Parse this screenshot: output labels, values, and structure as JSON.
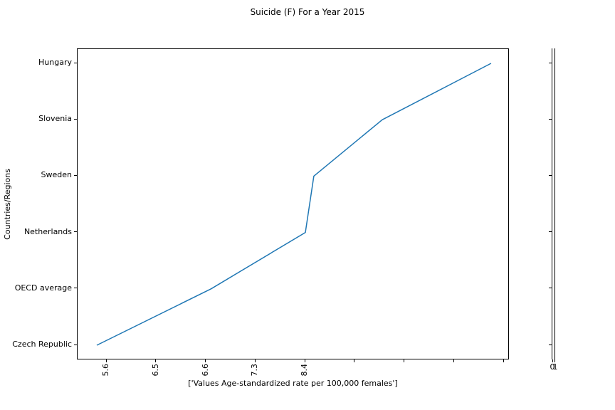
{
  "figure": {
    "background": "#ffffff",
    "text_color": "#000000"
  },
  "chart_data": {
    "type": "line",
    "title": "Suicide (F) For a Year 2015",
    "xlabel": "['Values Age-standardized rate per 100,000 females']",
    "ylabel": "Countries/Regions",
    "grid": false,
    "legend": false,
    "y_categories_bottom_to_top": [
      "Czech Republic",
      "OECD average",
      "Netherlands",
      "Sweden",
      "Slovenia",
      "Hungary"
    ],
    "x_tick_labels": [
      "5.6",
      "6.5",
      "6.6",
      "7.3",
      "8.4",
      "",
      "",
      "",
      ""
    ],
    "x_units": "x position measured in x-tick index units (0 = first labeled tick)",
    "series": [
      {
        "color": "#1f77b4",
        "points": [
          {
            "category": "Czech Republic",
            "x": -0.2
          },
          {
            "category": "OECD average",
            "x": 2.1
          },
          {
            "category": "Netherlands",
            "x": 4.0
          },
          {
            "category": "Sweden",
            "x": 4.17
          },
          {
            "category": "Slovenia",
            "x": 5.55
          },
          {
            "category": "Hungary",
            "x": 7.74
          }
        ]
      }
    ],
    "secondary_axis": {
      "x_tick_labels": [
        "0",
        "1"
      ]
    }
  }
}
